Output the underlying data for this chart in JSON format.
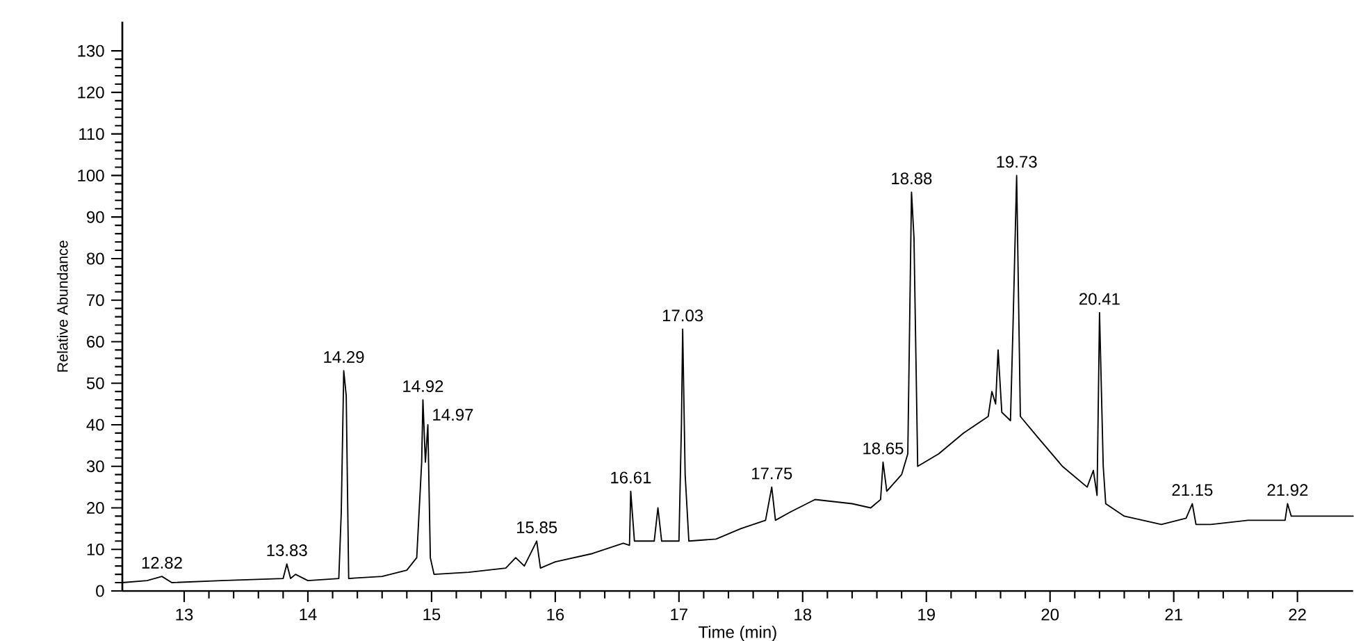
{
  "chart_data": {
    "type": "line",
    "xlabel": "Time (min)",
    "ylabel": "Relative Abundance",
    "xlim": [
      12.5,
      22.45
    ],
    "ylim": [
      0,
      137
    ],
    "xticks": [
      13,
      14,
      15,
      16,
      17,
      18,
      19,
      20,
      21,
      22
    ],
    "yticks": [
      0,
      10,
      20,
      30,
      40,
      50,
      60,
      70,
      80,
      90,
      100,
      110,
      120,
      130
    ],
    "marker": "none",
    "line_style": "solid",
    "series": [
      {
        "color": "#000000",
        "x": [
          12.5,
          12.7,
          12.82,
          12.9,
          13.3,
          13.8,
          13.83,
          13.86,
          13.9,
          14.0,
          14.25,
          14.27,
          14.29,
          14.31,
          14.33,
          14.6,
          14.8,
          14.88,
          14.92,
          14.93,
          14.95,
          14.97,
          14.99,
          15.02,
          15.3,
          15.6,
          15.68,
          15.75,
          15.85,
          15.88,
          16.0,
          16.3,
          16.55,
          16.6,
          16.61,
          16.64,
          16.8,
          16.83,
          16.86,
          17.0,
          17.02,
          17.03,
          17.05,
          17.08,
          17.3,
          17.5,
          17.7,
          17.75,
          17.78,
          17.9,
          18.1,
          18.4,
          18.55,
          18.63,
          18.65,
          18.68,
          18.8,
          18.85,
          18.88,
          18.9,
          18.93,
          19.1,
          19.3,
          19.5,
          19.53,
          19.56,
          19.58,
          19.61,
          19.68,
          19.7,
          19.73,
          19.76,
          19.9,
          20.1,
          20.3,
          20.35,
          20.38,
          20.4,
          20.43,
          20.45,
          20.6,
          20.9,
          21.1,
          21.15,
          21.18,
          21.3,
          21.6,
          21.9,
          21.92,
          21.95,
          22.2,
          22.45
        ],
        "values": [
          2,
          2.5,
          3.5,
          2,
          2.5,
          3,
          6.5,
          3,
          4,
          2.5,
          3,
          19,
          53,
          47,
          3,
          3.5,
          5,
          8,
          31,
          46,
          31,
          40,
          8,
          4,
          4.5,
          5.5,
          8,
          6,
          12,
          5.5,
          7,
          9,
          11.5,
          11,
          24,
          12,
          12,
          20,
          12,
          12,
          40,
          63,
          28,
          12,
          12.5,
          15,
          17,
          25,
          17,
          19,
          22,
          21,
          20,
          22,
          31,
          24,
          28,
          33,
          96,
          85,
          30,
          33,
          38,
          42,
          48,
          45,
          58,
          43,
          41,
          63,
          100,
          42,
          37,
          30,
          25,
          29,
          23,
          67,
          30,
          21,
          18,
          16,
          17.5,
          21,
          16,
          16,
          17,
          17,
          21,
          18,
          18,
          18
        ]
      }
    ],
    "annotations": [
      {
        "text": "12.82",
        "x": 12.82,
        "y": 3.5
      },
      {
        "text": "13.83",
        "x": 13.83,
        "y": 6.5
      },
      {
        "text": "14.29",
        "x": 14.29,
        "y": 53
      },
      {
        "text": "14.92",
        "x": 14.93,
        "y": 46
      },
      {
        "text": "14.97",
        "x": 14.97,
        "y": 40
      },
      {
        "text": "15.85",
        "x": 15.85,
        "y": 12
      },
      {
        "text": "16.61",
        "x": 16.61,
        "y": 24
      },
      {
        "text": "17.03",
        "x": 17.03,
        "y": 63
      },
      {
        "text": "17.75",
        "x": 17.75,
        "y": 25
      },
      {
        "text": "18.65",
        "x": 18.65,
        "y": 31
      },
      {
        "text": "18.88",
        "x": 18.88,
        "y": 96
      },
      {
        "text": "19.73",
        "x": 19.73,
        "y": 100
      },
      {
        "text": "20.41",
        "x": 20.4,
        "y": 67
      },
      {
        "text": "21.15",
        "x": 21.15,
        "y": 21
      },
      {
        "text": "21.92",
        "x": 21.92,
        "y": 21
      }
    ]
  }
}
